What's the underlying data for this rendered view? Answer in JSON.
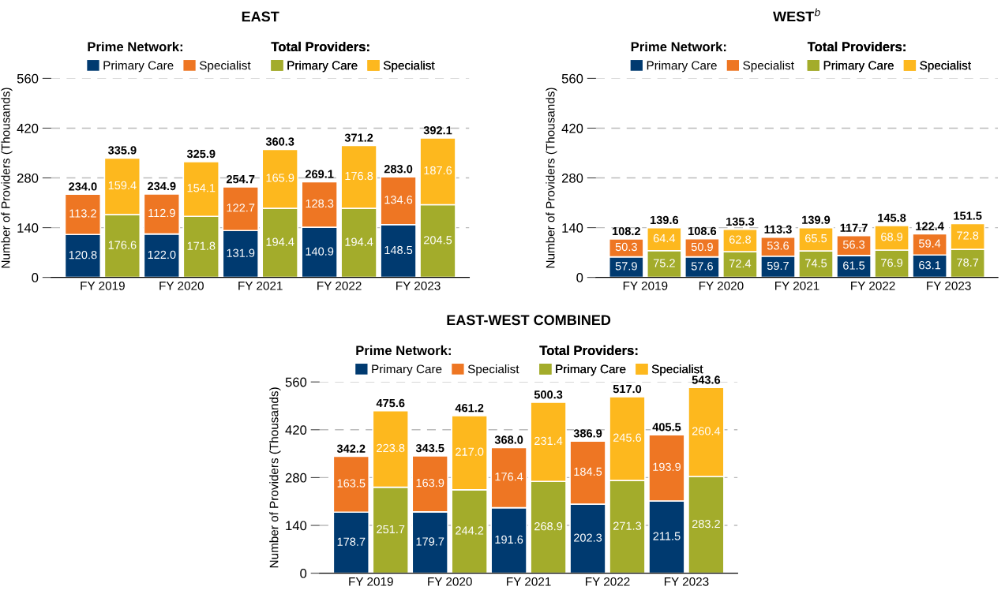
{
  "chart_data": [
    {
      "type": "bar",
      "title": "EAST",
      "ylabel": "Number of Providers (Thousands)",
      "categories": [
        "FY 2019",
        null,
        "FY 2020",
        null,
        "FY 2021",
        null,
        "FY 2022",
        null,
        "FY 2023",
        null
      ],
      "stacked": true,
      "ylim": [
        0,
        560
      ],
      "yticks": [
        0,
        140,
        280,
        420,
        560
      ],
      "grid": "y",
      "legend": "top",
      "legend_title": [
        "Prime Network:",
        "Total Providers:"
      ],
      "series": [
        {
          "name": "Primary Care",
          "color": "#003a70",
          "values": [
            120.8,
            null,
            122.0,
            null,
            131.9,
            null,
            140.9,
            null,
            148.5,
            null
          ],
          "value_labels": [
            "120.8",
            null,
            "122.0",
            null,
            "131.9",
            null,
            "140.9",
            null,
            "148.5",
            null
          ]
        },
        {
          "name": "Specialist",
          "color": "#ee7623",
          "values": [
            113.2,
            null,
            112.9,
            null,
            122.7,
            null,
            128.3,
            null,
            134.6,
            null
          ],
          "value_labels": [
            "113.2",
            null,
            "112.9",
            null,
            "122.7",
            null,
            "128.3",
            null,
            "134.6",
            null
          ]
        },
        {
          "name": "Primary Care",
          "color": "#a3ac2b",
          "values": [
            null,
            176.6,
            null,
            171.8,
            null,
            194.4,
            null,
            194.4,
            null,
            204.5
          ],
          "value_labels": [
            null,
            "176.6",
            null,
            "171.8",
            null,
            "194.4",
            null,
            "194.4",
            null,
            "204.5"
          ]
        },
        {
          "name": "Specialist",
          "color": "#fdb81e",
          "values": [
            null,
            159.4,
            null,
            154.1,
            null,
            165.9,
            null,
            176.8,
            null,
            187.6
          ],
          "value_labels": [
            null,
            "159.4",
            null,
            "154.1",
            null,
            "165.9",
            null,
            "176.8",
            null,
            "187.6"
          ]
        }
      ],
      "totals": [
        "234.0",
        "335.9",
        "234.9",
        "325.9",
        "254.7",
        "360.3",
        "269.1",
        "371.2",
        "283.0",
        "392.1"
      ]
    },
    {
      "type": "bar",
      "title": "WEST$^{b}$",
      "ylabel": "Number of Providers (Thousands)",
      "categories": [
        "FY 2019",
        null,
        "FY 2020",
        null,
        "FY 2021",
        null,
        "FY 2022",
        null,
        "FY 2023",
        null
      ],
      "stacked": true,
      "ylim": [
        0,
        560
      ],
      "yticks": [
        0,
        140,
        280,
        420,
        560
      ],
      "grid": "y",
      "legend": "top",
      "legend_title": [
        "Prime Network:",
        "Total Providers:"
      ],
      "series": [
        {
          "name": "Primary Care",
          "color": "#003a70",
          "values": [
            57.9,
            null,
            57.6,
            null,
            59.7,
            null,
            61.5,
            null,
            63.1,
            null
          ],
          "value_labels": [
            "57.9",
            null,
            "57.6",
            null,
            "59.7",
            null,
            "61.5",
            null,
            "63.1",
            null
          ]
        },
        {
          "name": "Specialist",
          "color": "#ee7623",
          "values": [
            50.3,
            null,
            50.9,
            null,
            53.6,
            null,
            56.3,
            null,
            59.4,
            null
          ],
          "value_labels": [
            "50.3",
            null,
            "50.9",
            null,
            "53.6",
            null,
            "56.3",
            null,
            "59.4",
            null
          ]
        },
        {
          "name": "Primary Care",
          "color": "#a3ac2b",
          "values": [
            null,
            75.2,
            null,
            72.4,
            null,
            74.5,
            null,
            76.9,
            null,
            78.7
          ],
          "value_labels": [
            null,
            "75.2",
            null,
            "72.4",
            null,
            "74.5",
            null,
            "76.9",
            null,
            "78.7"
          ]
        },
        {
          "name": "Specialist",
          "color": "#fdb81e",
          "values": [
            null,
            64.4,
            null,
            62.8,
            null,
            65.5,
            null,
            68.9,
            null,
            72.8
          ],
          "value_labels": [
            null,
            "64.4",
            null,
            "62.8",
            null,
            "65.5",
            null,
            "68.9",
            null,
            "72.8"
          ]
        }
      ],
      "totals": [
        "108.2",
        "139.6",
        "108.6",
        "135.3",
        "113.3",
        "139.9",
        "117.7",
        "145.8",
        "122.4",
        "151.5"
      ]
    },
    {
      "type": "bar",
      "title": "EAST-WEST COMBINED",
      "ylabel": "Number of Providers (Thousands)",
      "categories": [
        "FY 2019",
        null,
        "FY 2020",
        null,
        "FY 2021",
        null,
        "FY 2022",
        null,
        "FY 2023",
        null
      ],
      "stacked": true,
      "ylim": [
        0,
        560
      ],
      "yticks": [
        0,
        140,
        280,
        420,
        560
      ],
      "grid": "y",
      "legend": "top",
      "legend_title": [
        "Prime Network:",
        "Total Providers:"
      ],
      "series": [
        {
          "name": "Primary Care",
          "color": "#003a70",
          "values": [
            178.7,
            null,
            179.7,
            null,
            191.6,
            null,
            202.3,
            null,
            211.5,
            null
          ],
          "value_labels": [
            "178.7",
            null,
            "179.7",
            null,
            "191.6",
            null,
            "202.3",
            null,
            "211.5",
            null
          ]
        },
        {
          "name": "Specialist",
          "color": "#ee7623",
          "values": [
            163.5,
            null,
            163.9,
            null,
            176.4,
            null,
            184.5,
            null,
            193.9,
            null
          ],
          "value_labels": [
            "163.5",
            null,
            "163.9",
            null,
            "176.4",
            null,
            "184.5",
            null,
            "193.9",
            null
          ]
        },
        {
          "name": "Primary Care",
          "color": "#a3ac2b",
          "values": [
            null,
            251.7,
            null,
            244.2,
            null,
            268.9,
            null,
            271.3,
            null,
            283.2
          ],
          "value_labels": [
            null,
            "251.7",
            null,
            "244.2",
            null,
            "268.9",
            null,
            "271.3",
            null,
            "283.2"
          ]
        },
        {
          "name": "Specialist",
          "color": "#fdb81e",
          "values": [
            null,
            223.8,
            null,
            217.0,
            null,
            231.4,
            null,
            245.6,
            null,
            260.4
          ],
          "value_labels": [
            null,
            "223.8",
            null,
            "217.0",
            null,
            "231.4",
            null,
            "245.6",
            null,
            "260.4"
          ]
        }
      ],
      "totals": [
        "342.2",
        "475.6",
        "343.5",
        "461.2",
        "368.0",
        "500.3",
        "386.9",
        "517.0",
        "405.5",
        "543.6"
      ]
    }
  ]
}
